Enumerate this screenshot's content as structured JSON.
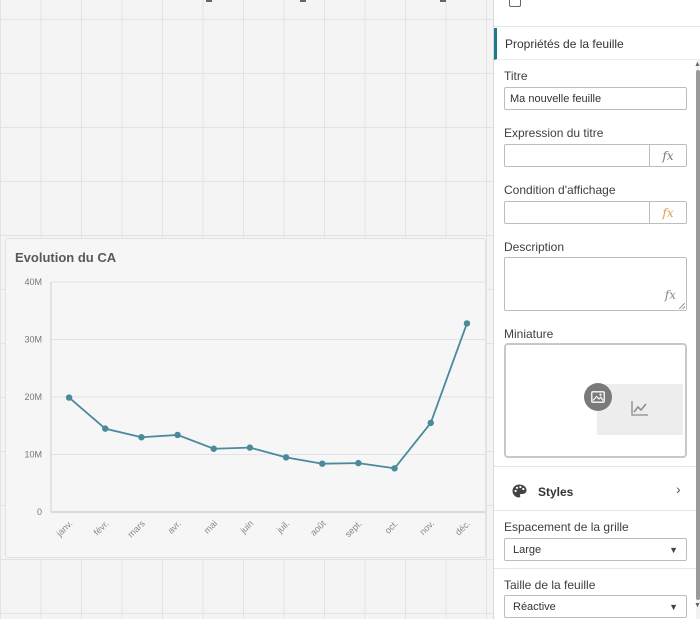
{
  "chart": {
    "title": "Evolution du CA"
  },
  "chart_data": {
    "type": "line",
    "title": "Evolution du CA",
    "categories": [
      "janv.",
      "févr.",
      "mars",
      "avr.",
      "mai",
      "juin",
      "juil.",
      "août",
      "sept.",
      "oct.",
      "nov.",
      "déc."
    ],
    "series": [
      {
        "values": [
          19.9,
          14.5,
          13.0,
          13.4,
          11.0,
          11.2,
          9.5,
          8.4,
          8.5,
          7.6,
          15.5,
          32.8
        ]
      }
    ],
    "y_ticks": [
      "0",
      "10M",
      "20M",
      "30M",
      "40M"
    ],
    "ylim": [
      0,
      40
    ],
    "xlabel": "",
    "ylabel": "",
    "color": "#4a8a9b",
    "grid": true
  },
  "panel": {
    "header": "Propriétés de la feuille",
    "title_label": "Titre",
    "title_value": "Ma nouvelle feuille",
    "title_expr_label": "Expression du titre",
    "show_condition_label": "Condition d'affichage",
    "description_label": "Description",
    "thumbnail_label": "Miniature",
    "styles_label": "Styles",
    "grid_spacing_label": "Espacement de la grille",
    "grid_spacing_value": "Large",
    "sheet_size_label": "Taille de la feuille",
    "sheet_size_value": "Réactive",
    "fx_symbol": "fx",
    "chevron": "›",
    "caret": "▼",
    "accent_color": "#1e7a87",
    "fx_highlight_color": "#d9a04a",
    "icons": [
      "document-icon",
      "fx-icon",
      "image-upload-icon",
      "line-chart-icon",
      "palette-icon",
      "chevron-right-icon",
      "caret-down-icon"
    ]
  }
}
